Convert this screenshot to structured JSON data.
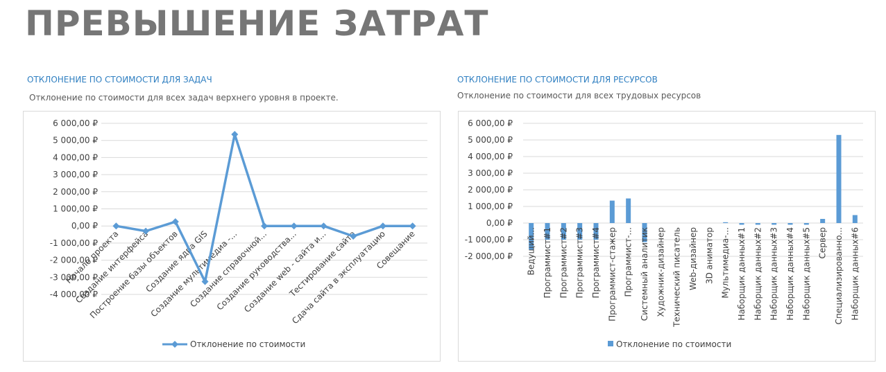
{
  "page": {
    "title": "ПРЕВЫШЕНИЕ ЗАТРАТ"
  },
  "tasks_section": {
    "heading": "ОТКЛОНЕНИЕ ПО СТОИМОСТИ ДЛЯ ЗАДАЧ",
    "description": "Отклонение по стоимости для всех задач верхнего уровня в проекте."
  },
  "resources_section": {
    "heading": "ОТКЛОНЕНИЕ ПО СТОИМОСТИ ДЛЯ РЕСУРСОВ",
    "description": "Отклонение по стоимости для всех трудовых ресурсов"
  },
  "colors": {
    "series": "#5b9bd5",
    "grid": "#d9d9d9",
    "axis_text": "#404040",
    "heading": "#2f7fc1"
  },
  "chart_data": [
    {
      "type": "line",
      "categories": [
        "Начало проекта",
        "Создание интерфейса",
        "Построение базы объектов",
        "Создание ядра GIS",
        "Создание мультимедиа -...",
        "Создание справочной...",
        "Создание руководства...",
        "Создание web - сайта и...",
        "Тестирование сайта",
        "Сдача сайта в эксплуатацию",
        "Совещание"
      ],
      "series": [
        {
          "name": "Отклонение по стоимости",
          "values": [
            0,
            -300,
            250,
            -3250,
            5350,
            0,
            0,
            0,
            -600,
            0,
            0
          ]
        }
      ],
      "ylim": [
        -4000,
        6000
      ],
      "yticks": [
        6000,
        5000,
        4000,
        3000,
        2000,
        1000,
        0,
        -1000,
        -2000,
        -3000,
        -4000
      ],
      "ytick_labels": [
        "6 000,00 ₽",
        "5 000,00 ₽",
        "4 000,00 ₽",
        "3 000,00 ₽",
        "2 000,00 ₽",
        "1 000,00 ₽",
        "0,00 ₽",
        "-1 000,00 ₽",
        "-2 000,00 ₽",
        "-3 000,00 ₽",
        "-4 000,00 ₽"
      ],
      "grid": true,
      "legend": "bottom",
      "marker": "diamond"
    },
    {
      "type": "bar",
      "categories": [
        "Ведущий...",
        "Программист#1",
        "Программист#2",
        "Программист#3",
        "Программист#4",
        "Программист-стажер",
        "Программист-...",
        "Системный аналитик",
        "Художник-дизайнер",
        "Технический писатель",
        "Web-дизайнер",
        "3D аниматор",
        "Мультимедиа-...",
        "Наборщик данных#1",
        "Наборщик данных#2",
        "Наборщик данных#3",
        "Наборщик данных#4",
        "Наборщик данных#5",
        "Сервер",
        "Специализированно...",
        "Наборщик данных#6"
      ],
      "series": [
        {
          "name": "Отклонение по стоимости",
          "values": [
            -1600,
            -1000,
            -1000,
            -1000,
            -1000,
            1350,
            1480,
            -1150,
            0,
            0,
            0,
            0,
            50,
            -100,
            -100,
            -100,
            -100,
            -100,
            250,
            5300,
            480
          ]
        }
      ],
      "ylim": [
        -2000,
        6000
      ],
      "yticks": [
        6000,
        5000,
        4000,
        3000,
        2000,
        1000,
        0,
        -1000,
        -2000
      ],
      "ytick_labels": [
        "6 000,00 ₽",
        "5 000,00 ₽",
        "4 000,00 ₽",
        "3 000,00 ₽",
        "2 000,00 ₽",
        "1 000,00 ₽",
        "0,00 ₽",
        "-1 000,00 ₽",
        "-2 000,00 ₽"
      ],
      "grid": true,
      "legend": "bottom"
    }
  ]
}
